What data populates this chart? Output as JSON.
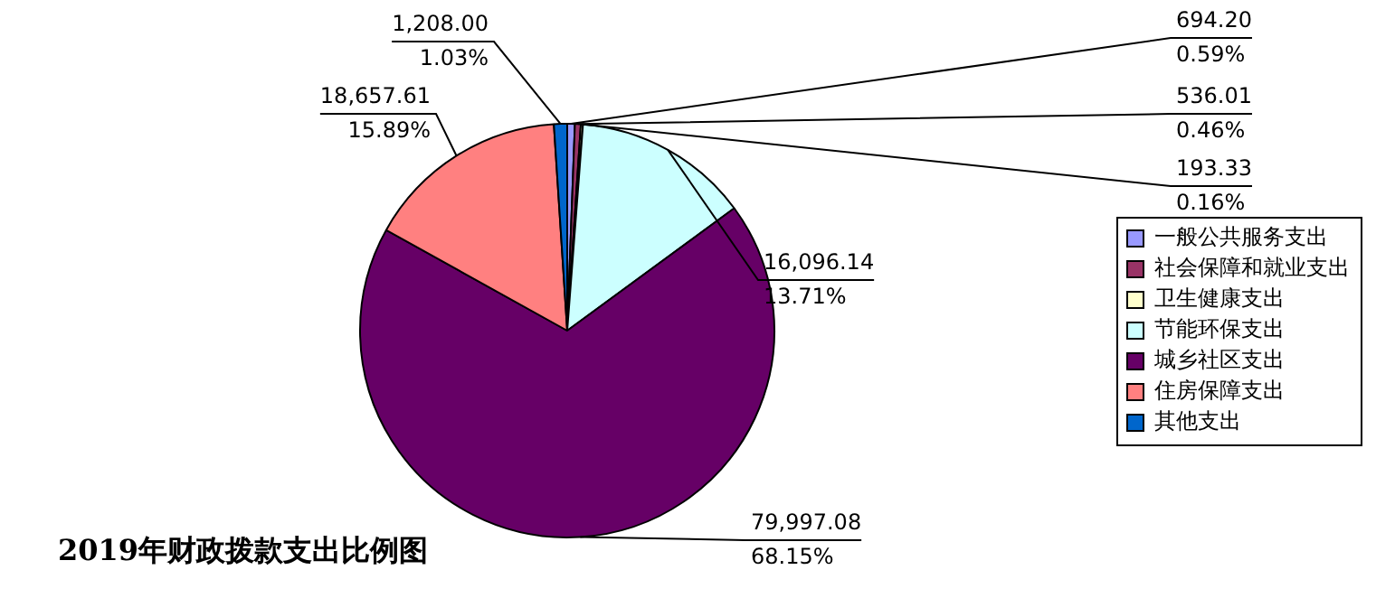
{
  "chart_data": {
    "type": "pie",
    "title": "2019年财政拨款支出比例图",
    "categories": [
      "一般公共服务支出",
      "社会保障和就业支出",
      "卫生健康支出",
      "节能环保支出",
      "城乡社区支出",
      "住房保障支出",
      "其他支出"
    ],
    "values": [
      694.2,
      536.01,
      193.33,
      16096.14,
      79997.08,
      18657.61,
      1208.0
    ],
    "colors": [
      "#9999ff",
      "#993366",
      "#ffffcc",
      "#ccffff",
      "#660066",
      "#ff8080",
      "#0066cc"
    ],
    "value_labels": [
      "694.20\n0.59%",
      "536.01\n0.46%",
      "193.33\n0.16%",
      "16,096.14\n13.71%",
      "79,997.08\n68.15%",
      "18,657.61\n15.89%",
      "1,208.00\n1.03%"
    ],
    "legend": "right"
  }
}
